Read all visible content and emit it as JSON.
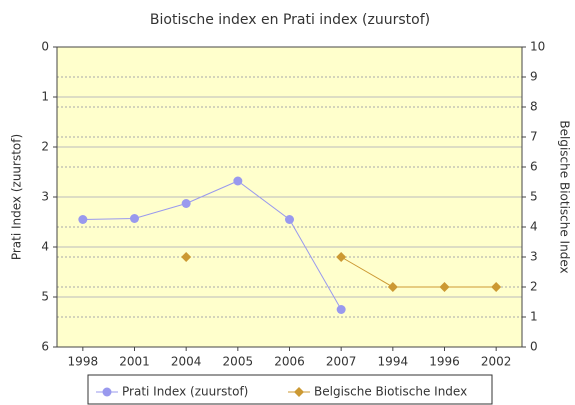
{
  "chart_data": {
    "type": "line",
    "title": "Biotische index en Prati index (zuurstof)",
    "ylabel": "Prati Index (zuurstof)",
    "y2label": "Belgische Biotische Index",
    "categories": [
      "1998",
      "2001",
      "2004",
      "2005",
      "2006",
      "2007",
      "1994",
      "1996",
      "2002"
    ],
    "ylim": [
      6,
      0
    ],
    "yticks": [
      0,
      1,
      2,
      3,
      4,
      5,
      6
    ],
    "y2lim": [
      0,
      10
    ],
    "y2ticks": [
      0,
      1,
      2,
      3,
      4,
      5,
      6,
      7,
      8,
      9,
      10
    ],
    "grid": true,
    "legend": "bottom",
    "series": [
      {
        "name": "Prati Index (zuurstof)",
        "color": "#9999ee",
        "marker": "circle",
        "values": [
          3.45,
          3.43,
          3.13,
          2.68,
          3.45,
          5.25,
          null,
          null,
          null
        ]
      },
      {
        "name": "Belgische Biotische Index",
        "color": "#cc9933",
        "marker": "diamond",
        "axis": "y2",
        "values": [
          null,
          null,
          3,
          null,
          null,
          3,
          2,
          2,
          2
        ]
      }
    ]
  }
}
